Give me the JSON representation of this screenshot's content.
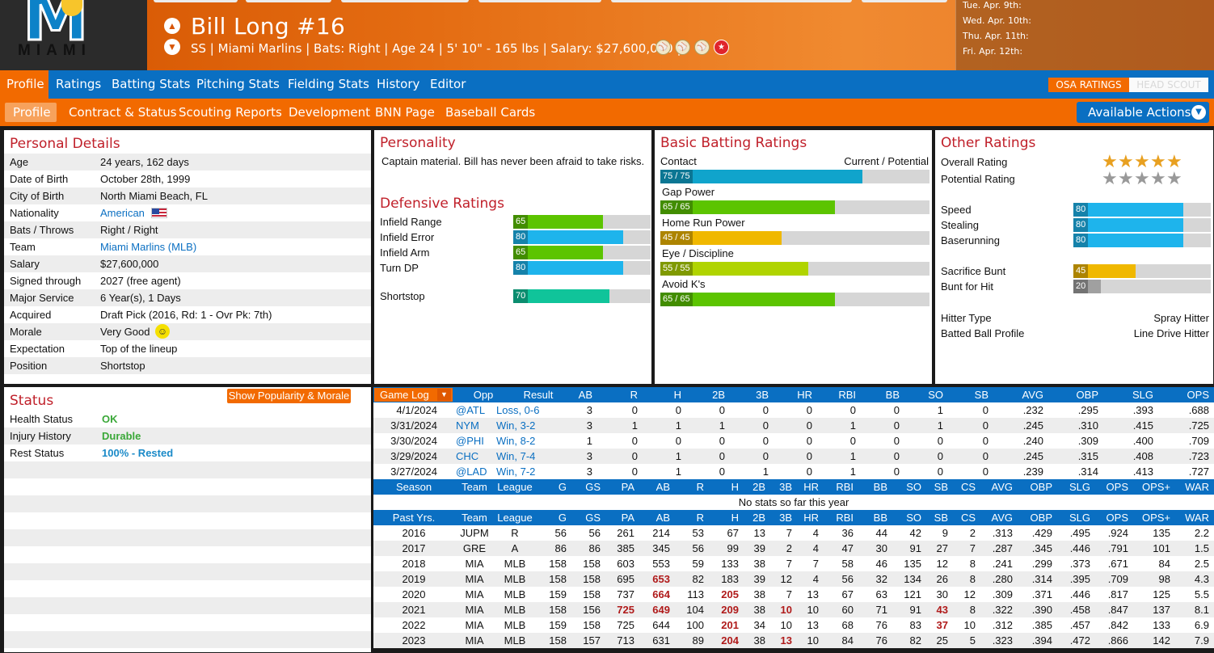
{
  "header": {
    "logo_text": "MIAMI",
    "player_name": "Bill Long  #16",
    "info_line": "SS | Miami Marlins  |  Bats: Right  |  Age 24  |  5' 10\" - 165 lbs  |  Salary: $27,600,000  |",
    "schedule": [
      "Tue. Apr. 9th:",
      "Wed. Apr. 10th:",
      "Thu. Apr. 11th:",
      "Fri. Apr. 12th:"
    ]
  },
  "nav_main": [
    "Profile",
    "Ratings",
    "Batting Stats",
    "Pitching Stats",
    "Fielding Stats",
    "History",
    "Editor"
  ],
  "rating_toggle": {
    "osa": "OSA RATINGS",
    "scout": "HEAD SCOUT"
  },
  "nav_sub": [
    "Profile",
    "Contract & Status",
    "Scouting Reports",
    "Development",
    "BNN Page",
    "Baseball Cards"
  ],
  "actions_label": "Available Actions",
  "personal": {
    "title": "Personal Details",
    "rows": [
      {
        "label": "Age",
        "value": "24 years, 162 days"
      },
      {
        "label": "Date of Birth",
        "value": "October 28th, 1999"
      },
      {
        "label": "City of Birth",
        "value": "North Miami Beach, FL"
      },
      {
        "label": "Nationality",
        "value": "American"
      },
      {
        "label": "Bats / Throws",
        "value": "Right / Right"
      },
      {
        "label": "Team",
        "value": "Miami Marlins (MLB)"
      },
      {
        "label": "Salary",
        "value": "$27,600,000"
      },
      {
        "label": "Signed through",
        "value": "2027 (free agent)"
      },
      {
        "label": "Major Service",
        "value": "6 Year(s), 1 Days"
      },
      {
        "label": "Acquired",
        "value": "Draft Pick (2016, Rd: 1 - Ovr Pk: 7th)"
      },
      {
        "label": "Morale",
        "value": "Very Good"
      },
      {
        "label": "Expectation",
        "value": "Top of the lineup"
      },
      {
        "label": "Position",
        "value": "Shortstop"
      }
    ]
  },
  "personality": {
    "title": "Personality",
    "text": "Captain material. Bill has never been afraid to take risks."
  },
  "defensive": {
    "title": "Defensive Ratings",
    "rows": [
      {
        "label": "Infield Range",
        "value": 65,
        "color": "#5cc400"
      },
      {
        "label": "Infield Error",
        "value": 80,
        "color": "#1eb4ec"
      },
      {
        "label": "Infield Arm",
        "value": 65,
        "color": "#5cc400"
      },
      {
        "label": "Turn DP",
        "value": 80,
        "color": "#1eb4ec"
      }
    ],
    "position": {
      "label": "Shortstop",
      "value": 70,
      "color": "#10c49a"
    }
  },
  "batting": {
    "title": "Basic Batting Ratings",
    "current_potential": "Current / Potential",
    "rows": [
      {
        "label": "Contact",
        "text": "75 / 75",
        "value": 75,
        "color": "#10a4cc"
      },
      {
        "label": "Gap Power",
        "text": "65 / 65",
        "value": 65,
        "color": "#5cc400"
      },
      {
        "label": "Home Run Power",
        "text": "45 / 45",
        "value": 45,
        "color": "#f0b800"
      },
      {
        "label": "Eye / Discipline",
        "text": "55 / 55",
        "value": 55,
        "color": "#b0d400"
      },
      {
        "label": "Avoid K's",
        "text": "65 / 65",
        "value": 65,
        "color": "#5cc400"
      }
    ]
  },
  "other": {
    "title": "Other Ratings",
    "overall_label": "Overall Rating",
    "overall_stars": 5,
    "potential_label": "Potential Rating",
    "potential_stars": 5,
    "running": [
      {
        "label": "Speed",
        "value": 80,
        "color": "#1eb4ec"
      },
      {
        "label": "Stealing",
        "value": 80,
        "color": "#1eb4ec"
      },
      {
        "label": "Baserunning",
        "value": 80,
        "color": "#1eb4ec"
      }
    ],
    "bunting": [
      {
        "label": "Sacrifice Bunt",
        "value": 45,
        "color": "#f0b800"
      },
      {
        "label": "Bunt for Hit",
        "value": 20,
        "color": "#a0a0a0"
      }
    ],
    "hitter_type_label": "Hitter Type",
    "hitter_type": "Spray Hitter",
    "batted_ball_label": "Batted Ball Profile",
    "batted_ball": "Line Drive Hitter"
  },
  "status": {
    "title": "Status",
    "popularity_btn": "Show Popularity & Morale",
    "rows": [
      {
        "label": "Health Status",
        "value": "OK",
        "style": "green"
      },
      {
        "label": "Injury History",
        "value": "Durable",
        "style": "green"
      },
      {
        "label": "Rest Status",
        "value": "100% - Rested",
        "style": "blue"
      }
    ]
  },
  "game_log": {
    "button": "Game Log",
    "headers": [
      "Opp",
      "Result",
      "AB",
      "R",
      "H",
      "2B",
      "3B",
      "HR",
      "RBI",
      "BB",
      "SO",
      "SB",
      "AVG",
      "OBP",
      "SLG",
      "OPS"
    ],
    "rows": [
      [
        "4/1/2024",
        "@ATL",
        "Loss, 0-6",
        "3",
        "0",
        "0",
        "0",
        "0",
        "0",
        "0",
        "0",
        "1",
        "0",
        ".232",
        ".295",
        ".393",
        ".688"
      ],
      [
        "3/31/2024",
        "NYM",
        "Win, 3-2",
        "3",
        "1",
        "1",
        "1",
        "0",
        "0",
        "1",
        "0",
        "1",
        "0",
        ".245",
        ".310",
        ".415",
        ".725"
      ],
      [
        "3/30/2024",
        "@PHI",
        "Win, 8-2",
        "1",
        "0",
        "0",
        "0",
        "0",
        "0",
        "0",
        "0",
        "0",
        "0",
        ".240",
        ".309",
        ".400",
        ".709"
      ],
      [
        "3/29/2024",
        "CHC",
        "Win, 7-4",
        "3",
        "0",
        "1",
        "0",
        "0",
        "0",
        "1",
        "0",
        "0",
        "0",
        ".245",
        ".315",
        ".408",
        ".723"
      ],
      [
        "3/27/2024",
        "@LAD",
        "Win, 7-2",
        "3",
        "0",
        "1",
        "0",
        "1",
        "0",
        "1",
        "0",
        "0",
        "0",
        ".239",
        ".314",
        ".413",
        ".727"
      ]
    ]
  },
  "season": {
    "headers": [
      "Season",
      "Team",
      "League",
      "G",
      "GS",
      "PA",
      "AB",
      "R",
      "H",
      "2B",
      "3B",
      "HR",
      "RBI",
      "BB",
      "SO",
      "SB",
      "CS",
      "AVG",
      "OBP",
      "SLG",
      "OPS",
      "OPS+",
      "WAR"
    ],
    "empty_msg": "No stats so far this year"
  },
  "past": {
    "headers": [
      "Past Yrs.",
      "Team",
      "League",
      "G",
      "GS",
      "PA",
      "AB",
      "R",
      "H",
      "2B",
      "3B",
      "HR",
      "RBI",
      "BB",
      "SO",
      "SB",
      "CS",
      "AVG",
      "OBP",
      "SLG",
      "OPS",
      "OPS+",
      "WAR"
    ],
    "rows": [
      [
        "2016",
        "JUPM",
        "R",
        "56",
        "56",
        "261",
        "214",
        "53",
        "67",
        "13",
        "7",
        "4",
        "36",
        "44",
        "42",
        "9",
        "2",
        ".313",
        ".429",
        ".495",
        ".924",
        "135",
        "2.2"
      ],
      [
        "2017",
        "GRE",
        "A",
        "86",
        "86",
        "385",
        "345",
        "56",
        "99",
        "39",
        "2",
        "4",
        "47",
        "30",
        "91",
        "27",
        "7",
        ".287",
        ".345",
        ".446",
        ".791",
        "101",
        "1.5"
      ],
      [
        "2018",
        "MIA",
        "MLB",
        "158",
        "158",
        "603",
        "553",
        "59",
        "133",
        "38",
        "7",
        "7",
        "58",
        "46",
        "135",
        "12",
        "8",
        ".241",
        ".299",
        ".373",
        ".671",
        "84",
        "2.5"
      ],
      [
        "2019",
        "MIA",
        "MLB",
        "158",
        "158",
        "695",
        "653",
        "82",
        "183",
        "39",
        "12",
        "4",
        "56",
        "32",
        "134",
        "26",
        "8",
        ".280",
        ".314",
        ".395",
        ".709",
        "98",
        "4.3"
      ],
      [
        "2020",
        "MIA",
        "MLB",
        "159",
        "158",
        "737",
        "664",
        "113",
        "205",
        "38",
        "7",
        "13",
        "67",
        "63",
        "121",
        "30",
        "12",
        ".309",
        ".371",
        ".446",
        ".817",
        "125",
        "5.5"
      ],
      [
        "2021",
        "MIA",
        "MLB",
        "158",
        "156",
        "725",
        "649",
        "104",
        "209",
        "38",
        "10",
        "10",
        "60",
        "71",
        "91",
        "43",
        "8",
        ".322",
        ".390",
        ".458",
        ".847",
        "137",
        "8.1"
      ],
      [
        "2022",
        "MIA",
        "MLB",
        "159",
        "158",
        "725",
        "644",
        "100",
        "201",
        "34",
        "10",
        "13",
        "68",
        "76",
        "83",
        "37",
        "10",
        ".312",
        ".385",
        ".457",
        ".842",
        "133",
        "6.9"
      ],
      [
        "2023",
        "MIA",
        "MLB",
        "158",
        "157",
        "713",
        "631",
        "89",
        "204",
        "38",
        "13",
        "10",
        "84",
        "76",
        "82",
        "25",
        "5",
        ".323",
        ".394",
        ".472",
        ".866",
        "142",
        "7.9"
      ]
    ],
    "highlights": {
      "2019": [
        "AB"
      ],
      "2020": [
        "AB",
        "H"
      ],
      "2021": [
        "PA",
        "AB",
        "H",
        "3B",
        "SB"
      ],
      "2022": [
        "H",
        "SB"
      ],
      "2023": [
        "H",
        "3B"
      ]
    }
  }
}
